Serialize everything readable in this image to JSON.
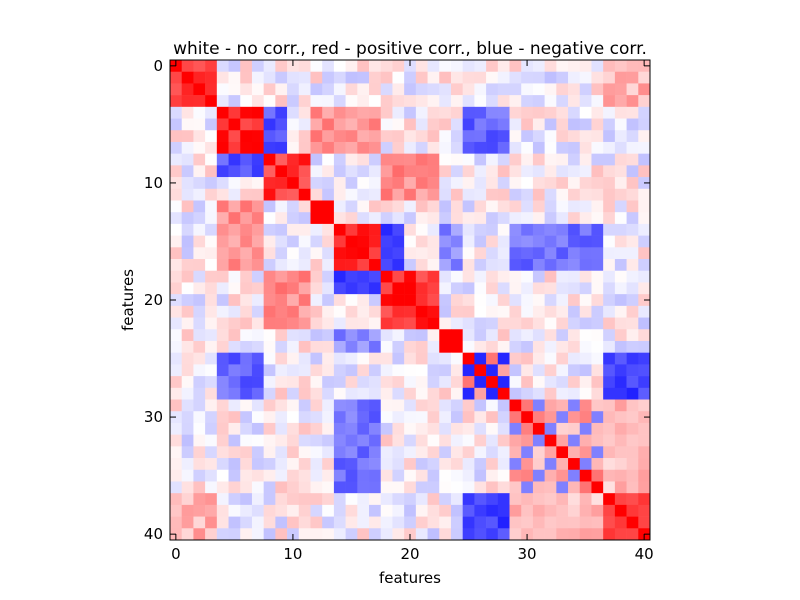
{
  "chart_data": {
    "type": "heatmap",
    "title": "white - no corr., red - positive corr., blue - negative corr.",
    "xlabel": "features",
    "ylabel": "features",
    "n": 41,
    "x_ticks": [
      0,
      10,
      20,
      30,
      40
    ],
    "y_ticks": [
      0,
      10,
      20,
      30,
      40
    ],
    "color_scale": {
      "negative": "#0000ff",
      "zero": "#ffffff",
      "positive": "#ff0000",
      "range": [
        -1,
        1
      ]
    },
    "grid": false,
    "legend": "none",
    "blocks": [
      {
        "range": [
          0,
          3
        ],
        "value": 0.85
      },
      {
        "range": [
          4,
          7
        ],
        "value": 0.85
      },
      {
        "range": [
          8,
          11
        ],
        "value": 0.8
      },
      {
        "range": [
          12,
          13
        ],
        "value": 0.9
      },
      {
        "range": [
          14,
          17
        ],
        "value": 0.85
      },
      {
        "range": [
          18,
          22
        ],
        "value": 0.85
      },
      {
        "range": [
          23,
          24
        ],
        "value": 0.9
      },
      {
        "range": [
          25,
          28
        ],
        "value": 0.5
      },
      {
        "range": [
          29,
          36
        ],
        "value": 0.35
      },
      {
        "range": [
          37,
          40
        ],
        "value": 0.75
      }
    ],
    "strong_pairs": [
      {
        "a": [
          25,
          28
        ],
        "b": [
          37,
          40
        ],
        "value": -0.75
      },
      {
        "a": [
          25,
          28
        ],
        "b": [
          4,
          7
        ],
        "value": -0.6
      },
      {
        "a": [
          18,
          19
        ],
        "b": [
          14,
          17
        ],
        "value": -0.7
      },
      {
        "a": [
          8,
          9
        ],
        "b": [
          4,
          7
        ],
        "value": -0.65
      },
      {
        "a": [
          29,
          36
        ],
        "b": [
          14,
          17
        ],
        "value": -0.55
      },
      {
        "a": [
          12,
          13
        ],
        "b": [
          4,
          7
        ],
        "value": 0.45
      },
      {
        "a": [
          14,
          17
        ],
        "b": [
          4,
          7
        ],
        "value": 0.4
      },
      {
        "a": [
          18,
          22
        ],
        "b": [
          8,
          11
        ],
        "value": 0.45
      },
      {
        "a": [
          37,
          40
        ],
        "b": [
          0,
          3
        ],
        "value": 0.3
      },
      {
        "a": [
          29,
          36
        ],
        "b": [
          37,
          40
        ],
        "value": 0.25
      },
      {
        "a": [
          23,
          24
        ],
        "b": [
          14,
          17
        ],
        "value": -0.45
      }
    ]
  }
}
